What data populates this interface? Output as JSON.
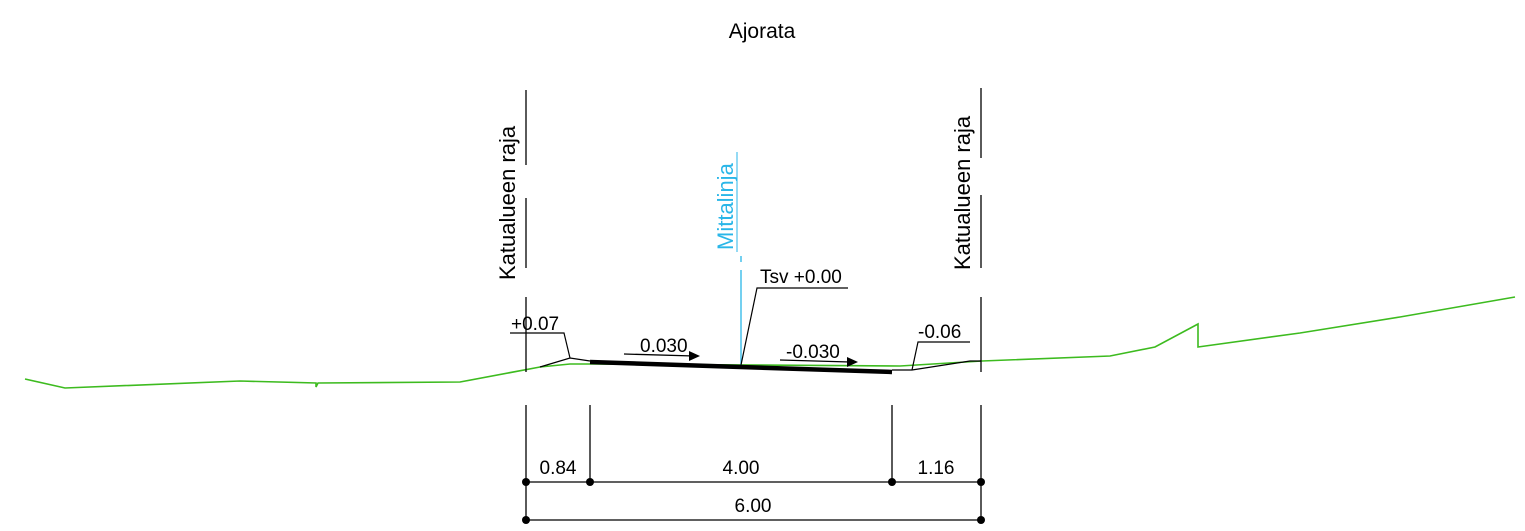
{
  "title": "Ajorata",
  "boundary_left_label": "Katualueen raja",
  "boundary_right_label": "Katualueen raja",
  "centerline_label": "Mittalinja",
  "grade_label": "Tsv +0.00",
  "elev_left": "+0.07",
  "elev_right": "-0.06",
  "slope_left": "0.030",
  "slope_right": "-0.030",
  "dim_left": "0.84",
  "dim_middle": "4.00",
  "dim_right": "1.16",
  "dim_total": "6.00",
  "colors": {
    "ground": "#3dbb1f",
    "centerline": "#29b6e8",
    "road": "#000000"
  }
}
